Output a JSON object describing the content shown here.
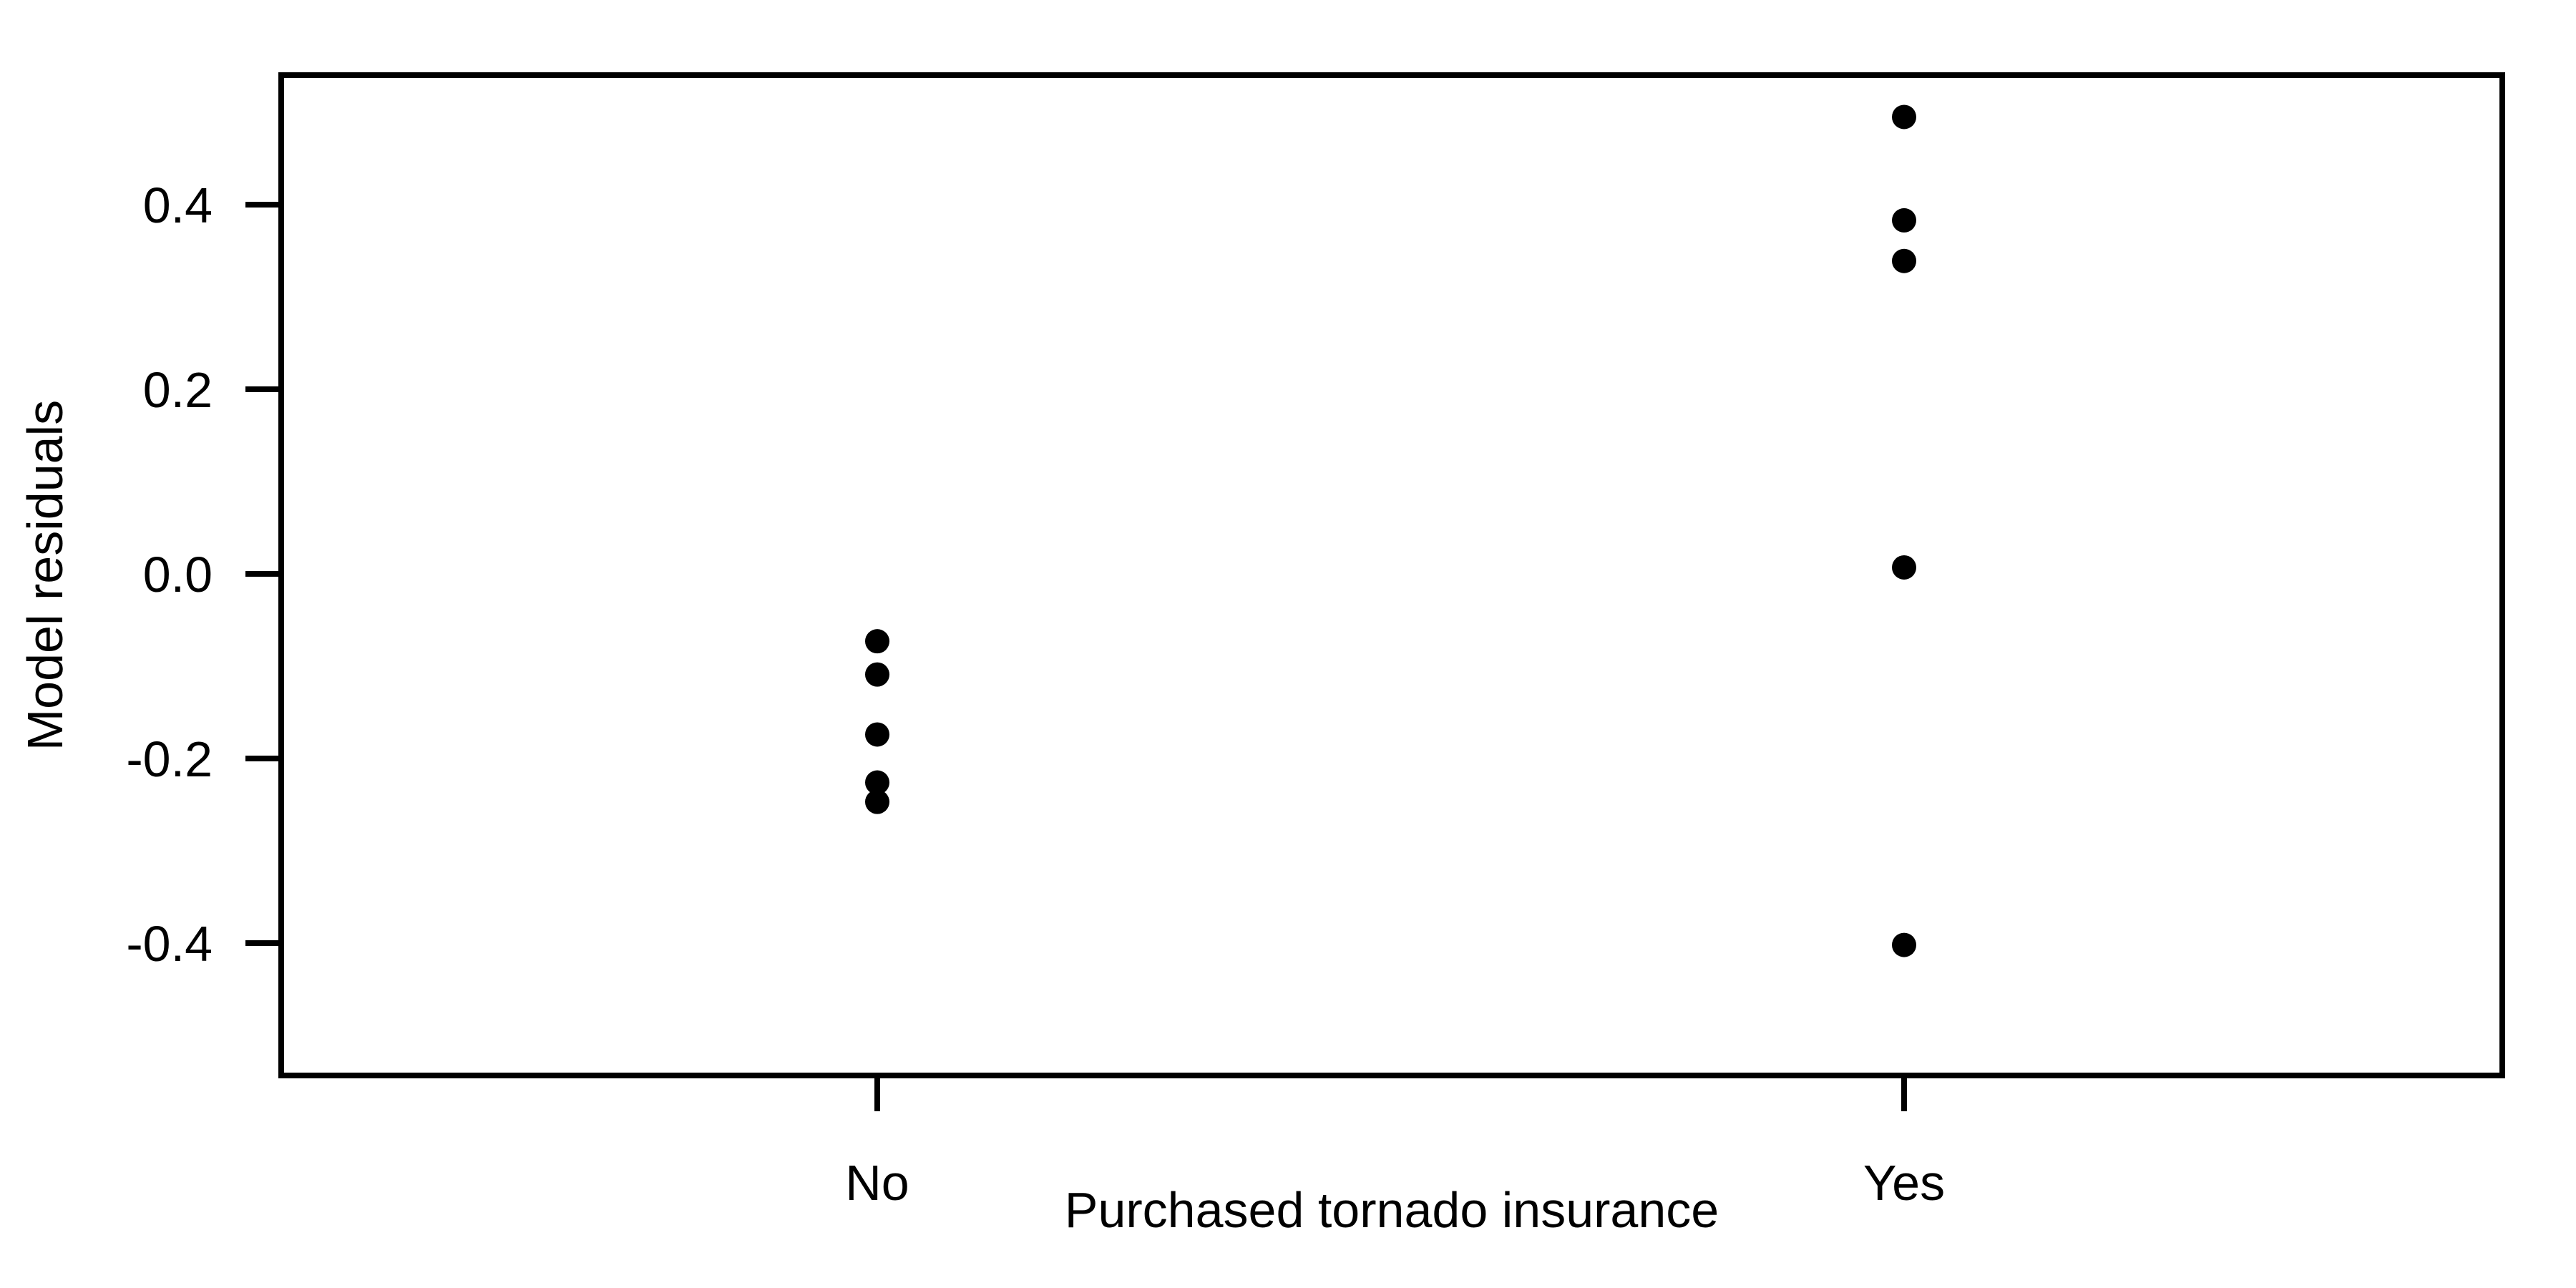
{
  "figure": {
    "background": "#ffffff",
    "axis_color": "#000000"
  },
  "chart_data": {
    "type": "scatter",
    "variant": "stripchart",
    "title": "",
    "xlabel": "Purchased tornado insurance",
    "ylabel": "Model residuals",
    "categories": [
      "No",
      "Yes"
    ],
    "series": [
      {
        "name": "No",
        "values": [
          -0.073,
          -0.109,
          -0.174,
          -0.226,
          -0.247
        ]
      },
      {
        "name": "Yes",
        "values": [
          0.495,
          0.383,
          0.339,
          0.007,
          -0.402
        ]
      }
    ],
    "y_ticks": [
      {
        "value": 0.4,
        "label": "0.4"
      },
      {
        "value": 0.2,
        "label": "0.2"
      },
      {
        "value": 0.0,
        "label": "0.0"
      },
      {
        "value": -0.2,
        "label": "-0.2"
      },
      {
        "value": -0.4,
        "label": "-0.4"
      }
    ],
    "ylim": [
      -0.545,
      0.54
    ],
    "xlim_categories": [
      0.6,
      2.4
    ],
    "grid": false,
    "legend": "none",
    "point_style": {
      "shape": "filled-circle",
      "color": "#000000"
    }
  }
}
